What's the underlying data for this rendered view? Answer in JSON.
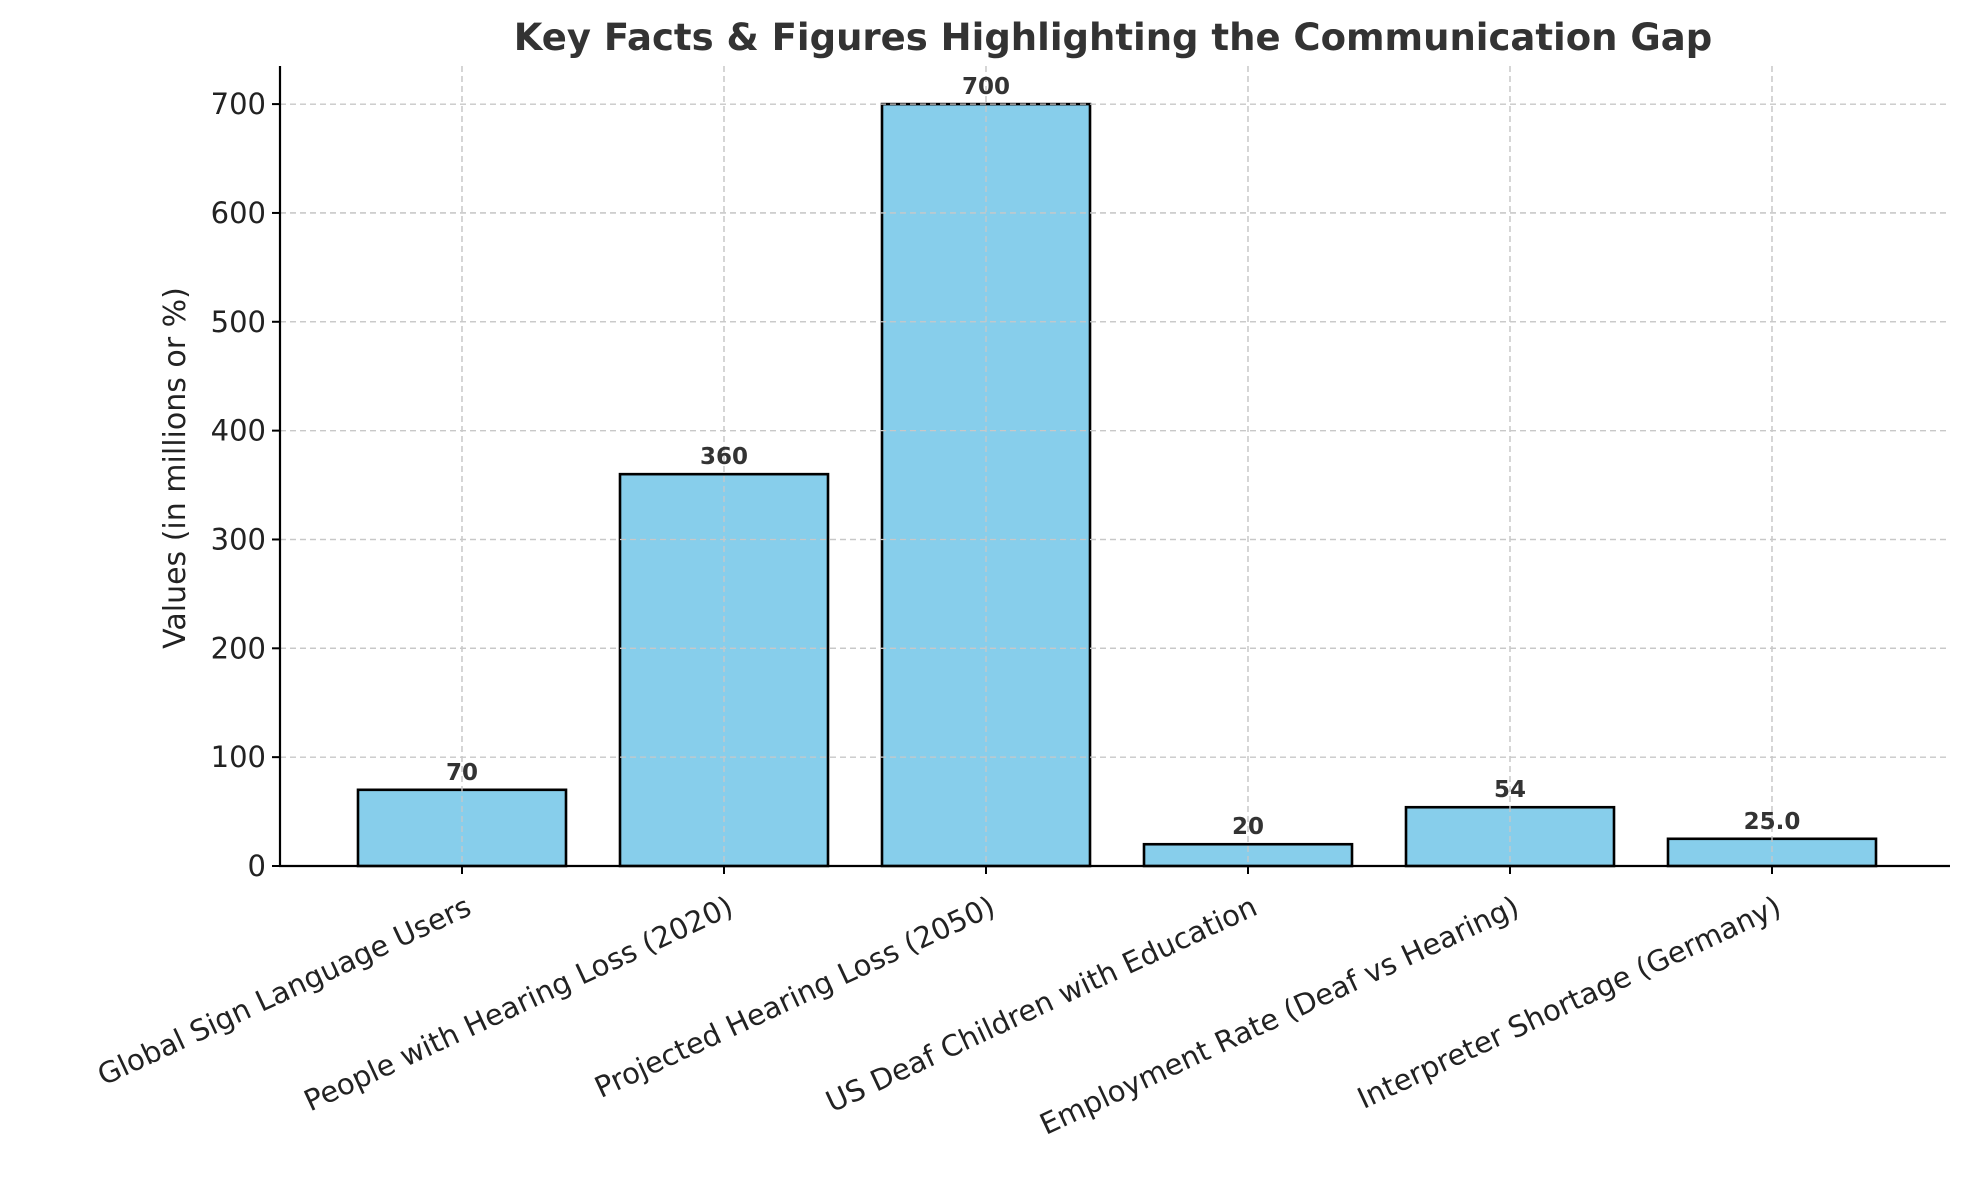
{
  "chart_data": {
    "type": "bar",
    "title": "Key Facts & Figures Highlighting the Communication Gap",
    "xlabel": "",
    "ylabel": "Values (in millions or %)",
    "categories": [
      "Global Sign Language Users",
      "People with Hearing Loss (2020)",
      "Projected Hearing Loss (2050)",
      "US Deaf Children with Education",
      "Employment Rate (Deaf vs Hearing)",
      "Interpreter Shortage (Germany)"
    ],
    "values": [
      70,
      360,
      700,
      20,
      54,
      25.0
    ],
    "value_labels": [
      "70",
      "360",
      "700",
      "20",
      "54",
      "25.0"
    ],
    "ylim": [
      0,
      735
    ],
    "yticks": [
      0,
      100,
      200,
      300,
      400,
      500,
      600,
      700
    ],
    "grid": true,
    "colors": {
      "bar_fill": "#87ceeb",
      "bar_edge": "#000000",
      "grid": "#c8c8c8",
      "title": "#333333"
    }
  }
}
